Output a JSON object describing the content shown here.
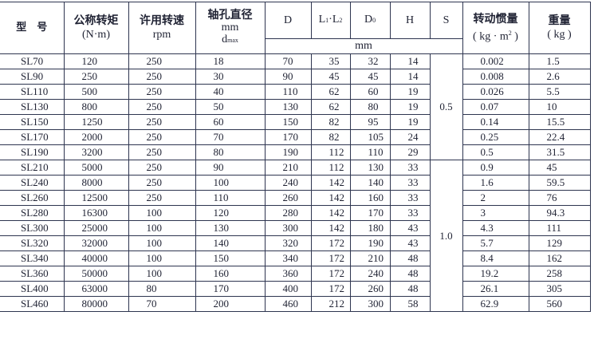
{
  "headers": {
    "model": "型　号",
    "torque": "公称转矩",
    "torque_unit": "(N·m)",
    "speed": "许用转速",
    "speed_unit": "rpm",
    "bore": "轴孔直径",
    "bore_unit": "mm",
    "bore_sym": "d",
    "bore_sub": "max",
    "D": "D",
    "L": "L",
    "L_sub1": "1",
    "L_sep": "·L",
    "L_sub2": "2",
    "D0": "D",
    "D0_sub": "0",
    "H": "H",
    "S": "S",
    "mm": "mm",
    "inertia": "转动惯量",
    "inertia_unit_a": "( kg · m",
    "inertia_sup": "2",
    "inertia_unit_b": " )",
    "weight": "重量",
    "weight_unit": "( kg )"
  },
  "s_groups": [
    "0.5",
    "1.0"
  ],
  "rows": [
    [
      "SL70",
      "120",
      "250",
      "18",
      "70",
      "35",
      "32",
      "14",
      "0.002",
      "1.5"
    ],
    [
      "SL90",
      "250",
      "250",
      "30",
      "90",
      "45",
      "45",
      "14",
      "0.008",
      "2.6"
    ],
    [
      "SL110",
      "500",
      "250",
      "40",
      "110",
      "62",
      "60",
      "19",
      "0.026",
      "5.5"
    ],
    [
      "SL130",
      "800",
      "250",
      "50",
      "130",
      "62",
      "80",
      "19",
      "0.07",
      "10"
    ],
    [
      "SL150",
      "1250",
      "250",
      "60",
      "150",
      "82",
      "95",
      "19",
      "0.14",
      "15.5"
    ],
    [
      "SL170",
      "2000",
      "250",
      "70",
      "170",
      "82",
      "105",
      "24",
      "0.25",
      "22.4"
    ],
    [
      "SL190",
      "3200",
      "250",
      "80",
      "190",
      "112",
      "110",
      "29",
      "0.5",
      "31.5"
    ],
    [
      "SL210",
      "5000",
      "250",
      "90",
      "210",
      "112",
      "130",
      "33",
      "0.9",
      "45"
    ],
    [
      "SL240",
      "8000",
      "250",
      "100",
      "240",
      "142",
      "140",
      "33",
      "1.6",
      "59.5"
    ],
    [
      "SL260",
      "12500",
      "250",
      "110",
      "260",
      "142",
      "160",
      "33",
      "2",
      "76"
    ],
    [
      "SL280",
      "16300",
      "100",
      "120",
      "280",
      "142",
      "170",
      "33",
      "3",
      "94.3"
    ],
    [
      "SL300",
      "25000",
      "100",
      "130",
      "300",
      "142",
      "180",
      "43",
      "4.3",
      "111"
    ],
    [
      "SL320",
      "32000",
      "100",
      "140",
      "320",
      "172",
      "190",
      "43",
      "5.7",
      "129"
    ],
    [
      "SL340",
      "40000",
      "100",
      "150",
      "340",
      "172",
      "210",
      "48",
      "8.4",
      "162"
    ],
    [
      "SL360",
      "50000",
      "100",
      "160",
      "360",
      "172",
      "240",
      "48",
      "19.2",
      "258"
    ],
    [
      "SL400",
      "63000",
      "80",
      "170",
      "400",
      "172",
      "260",
      "48",
      "26.1",
      "305"
    ],
    [
      "SL460",
      "80000",
      "70",
      "200",
      "460",
      "212",
      "300",
      "58",
      "62.9",
      "560"
    ]
  ]
}
